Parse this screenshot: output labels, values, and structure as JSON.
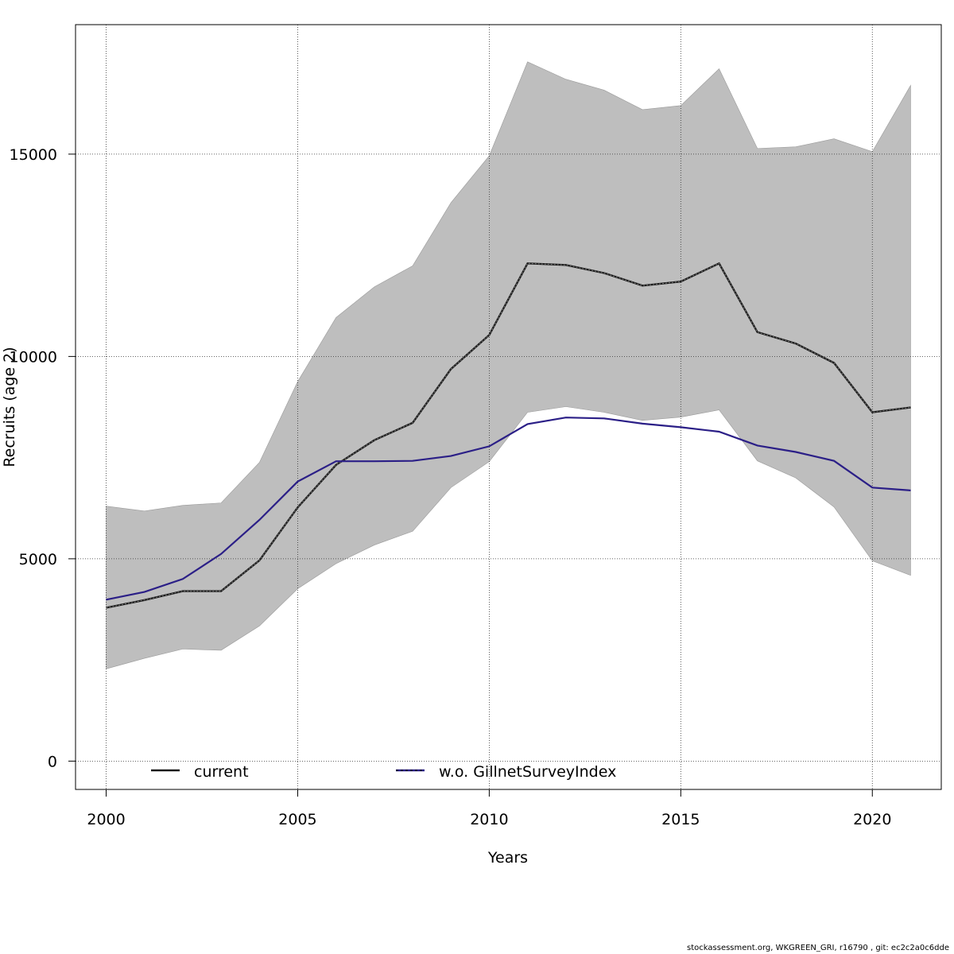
{
  "chart_data": {
    "type": "line",
    "xlabel": "Years",
    "ylabel": "Recruits (age 2)",
    "xlim": [
      1999.2,
      2021.8
    ],
    "ylim": [
      -700,
      18200
    ],
    "x_ticks": [
      2000,
      2005,
      2010,
      2015,
      2020
    ],
    "y_ticks": [
      0,
      5000,
      10000,
      15000
    ],
    "grid": true,
    "legend_placement": "bottom",
    "x": [
      2000,
      2001,
      2002,
      2003,
      2004,
      2005,
      2006,
      2007,
      2008,
      2009,
      2010,
      2011,
      2012,
      2013,
      2014,
      2015,
      2016,
      2017,
      2018,
      2019,
      2020,
      2021
    ],
    "confidence_band": {
      "lower": [
        2280,
        2540,
        2770,
        2740,
        3340,
        4260,
        4880,
        5340,
        5680,
        6760,
        7400,
        8620,
        8760,
        8620,
        8420,
        8500,
        8680,
        7420,
        7000,
        6280,
        4950,
        4590
      ],
      "upper": [
        6300,
        6180,
        6320,
        6380,
        7380,
        9380,
        10960,
        11720,
        12240,
        13800,
        14960,
        17280,
        16850,
        16580,
        16100,
        16200,
        17110,
        15140,
        15180,
        15380,
        15060,
        16700
      ],
      "color": "#bebebe"
    },
    "series": [
      {
        "name": "current",
        "values": [
          3790,
          3980,
          4200,
          4200,
          4960,
          6270,
          7320,
          7930,
          8360,
          9690,
          10530,
          12300,
          12260,
          12060,
          11750,
          11850,
          12300,
          10600,
          10320,
          9840,
          8620,
          8740
        ],
        "color": "#1a1a1a",
        "style": "dashed-over-solid"
      },
      {
        "name": "w.o. GillnetSurveyIndex",
        "values": [
          3990,
          4180,
          4500,
          5120,
          5960,
          6910,
          7410,
          7410,
          7420,
          7540,
          7780,
          8330,
          8490,
          8470,
          8340,
          8250,
          8140,
          7800,
          7640,
          7420,
          6760,
          6690
        ],
        "color": "#2b1f87",
        "style": "solid"
      }
    ]
  },
  "footer": "stockassessment.org, WKGREEN_GRI, r16790 , git: ec2c2a0c6dde"
}
